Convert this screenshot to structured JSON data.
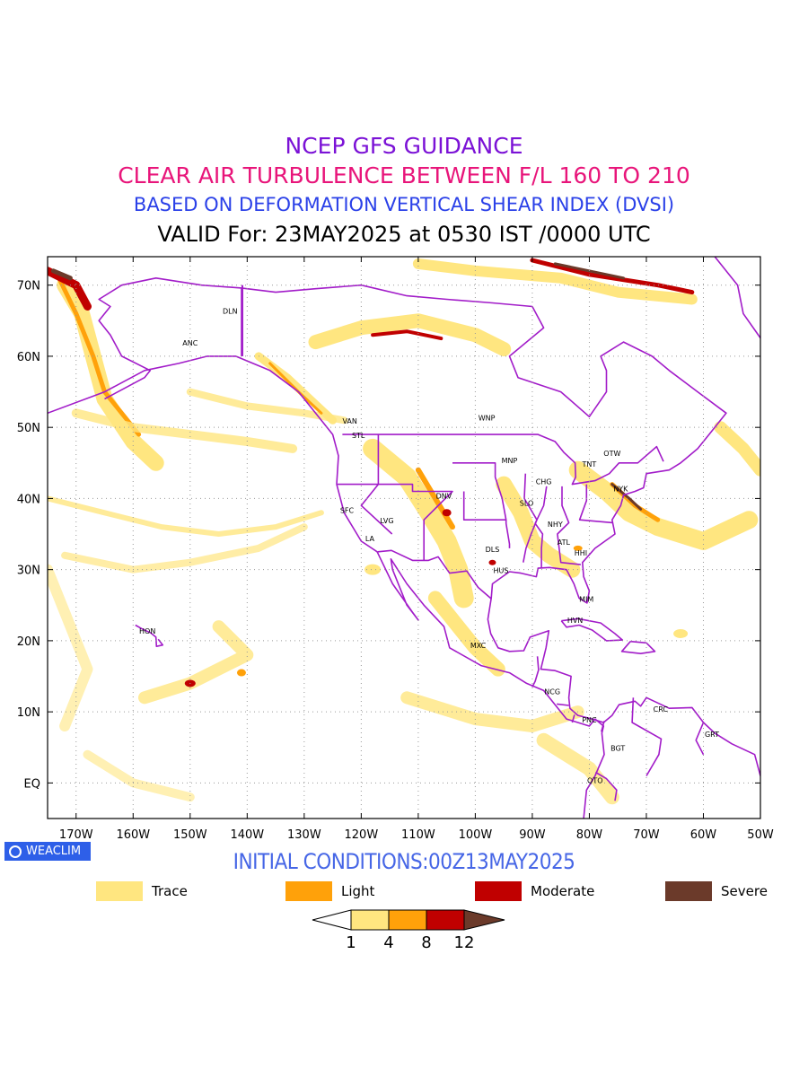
{
  "header": {
    "line1": "NCEP GFS GUIDANCE",
    "line2": "CLEAR AIR TURBULENCE BETWEEN F/L 160 TO 210",
    "line3": "BASED ON DEFORMATION VERTICAL SHEAR INDEX (DVSI)",
    "line4": "VALID For: 23MAY2025 at 0530 IST /0000 UTC"
  },
  "colors": {
    "line1": "#7b12d6",
    "line2": "#e8157a",
    "line3": "#2a40e8",
    "line4": "#000000",
    "boundaries": "#a21cc9",
    "initial": "#4666e6",
    "trace": "#ffe680",
    "light": "#ffa10a",
    "moderate": "#c00000",
    "severe": "#6b3a2a"
  },
  "map": {
    "lat_labels": [
      "70N",
      "60N",
      "50N",
      "40N",
      "30N",
      "20N",
      "10N",
      "EQ"
    ],
    "lon_labels": [
      "170W",
      "160W",
      "150W",
      "140W",
      "130W",
      "120W",
      "110W",
      "100W",
      "90W",
      "80W",
      "70W",
      "60W",
      "50W"
    ],
    "cities": [
      {
        "name": "DLN",
        "lat": 66.0,
        "lon": -143.0
      },
      {
        "name": "ANC",
        "lat": 61.5,
        "lon": -150.0
      },
      {
        "name": "VAN",
        "lat": 50.5,
        "lon": -122.0
      },
      {
        "name": "STL",
        "lat": 48.5,
        "lon": -120.5
      },
      {
        "name": "WNP",
        "lat": 51.0,
        "lon": -98.0
      },
      {
        "name": "MNP",
        "lat": 45.0,
        "lon": -94.0
      },
      {
        "name": "OTW",
        "lat": 46.0,
        "lon": -76.0
      },
      {
        "name": "TNT",
        "lat": 44.5,
        "lon": -80.0
      },
      {
        "name": "CHG",
        "lat": 42.0,
        "lon": -88.0
      },
      {
        "name": "NYK",
        "lat": 41.0,
        "lon": -74.5
      },
      {
        "name": "DNV",
        "lat": 40.0,
        "lon": -105.5
      },
      {
        "name": "SLO",
        "lat": 39.0,
        "lon": -91.0
      },
      {
        "name": "SFC",
        "lat": 38.0,
        "lon": -122.5
      },
      {
        "name": "LVG",
        "lat": 36.5,
        "lon": -115.5
      },
      {
        "name": "LA",
        "lat": 34.0,
        "lon": -118.5
      },
      {
        "name": "NHY",
        "lat": 36.0,
        "lon": -86.0
      },
      {
        "name": "ATL",
        "lat": 33.5,
        "lon": -84.5
      },
      {
        "name": "DLS",
        "lat": 32.5,
        "lon": -97.0
      },
      {
        "name": "HHI",
        "lat": 32.0,
        "lon": -81.5
      },
      {
        "name": "HUS",
        "lat": 29.5,
        "lon": -95.5
      },
      {
        "name": "MIM",
        "lat": 25.5,
        "lon": -80.5
      },
      {
        "name": "HVN",
        "lat": 22.5,
        "lon": -82.5
      },
      {
        "name": "HON",
        "lat": 21.0,
        "lon": -157.5
      },
      {
        "name": "MXC",
        "lat": 19.0,
        "lon": -99.5
      },
      {
        "name": "NCG",
        "lat": 12.5,
        "lon": -86.5
      },
      {
        "name": "CRC",
        "lat": 10.0,
        "lon": -67.5
      },
      {
        "name": "PNC",
        "lat": 8.5,
        "lon": -80.0
      },
      {
        "name": "GRT",
        "lat": 6.5,
        "lon": -58.5
      },
      {
        "name": "BGT",
        "lat": 4.5,
        "lon": -75.0
      },
      {
        "name": "QTO",
        "lat": 0.0,
        "lon": -79.0
      }
    ]
  },
  "initial_conditions": "INITIAL CONDITIONS:00Z13MAY2025",
  "logo_text": "WEACLIM",
  "legend": {
    "trace": "Trace",
    "light": "Light",
    "moderate": "Moderate",
    "severe": "Severe"
  },
  "colorbar": {
    "ticks": [
      "1",
      "4",
      "8",
      "12"
    ]
  }
}
